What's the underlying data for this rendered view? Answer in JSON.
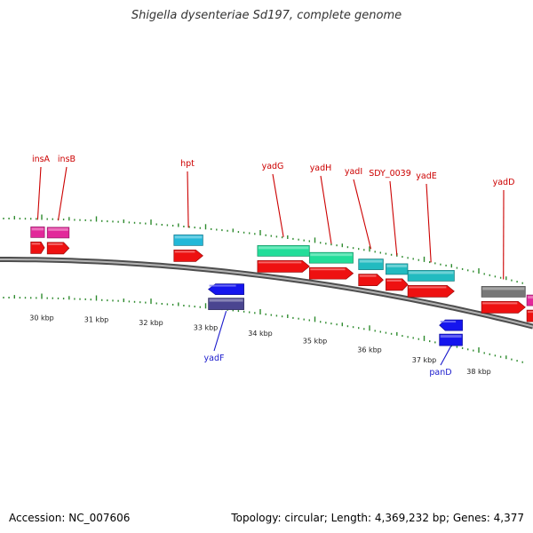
{
  "title": "Shigella dysenteriae Sd197, complete genome",
  "footer": {
    "accession": "Accession: NC_007606",
    "topology": "Topology: circular; Length: 4,369,232 bp; Genes: 4,377"
  },
  "colors": {
    "backbone": "#808080",
    "tick": "#2e8b2e",
    "label_top": "#cc0000",
    "label_bottom": "#1a1acc",
    "cds_red": "#ee1111",
    "magenta": "#e2289a",
    "cyan": "#22b8d8",
    "green_teal": "#22dd99",
    "teal": "#22bbc0",
    "gray": "#777777",
    "blue": "#1515ee",
    "slate": "#4a4590"
  },
  "chart_data": {
    "type": "genome-map",
    "view_range_kbp": [
      29.2,
      38.8
    ],
    "scale_labels": [
      {
        "kbp": 30,
        "label": "30 kbp"
      },
      {
        "kbp": 31,
        "label": "31 kbp"
      },
      {
        "kbp": 32,
        "label": "32 kbp"
      },
      {
        "kbp": 33,
        "label": "33 kbp"
      },
      {
        "kbp": 34,
        "label": "34 kbp"
      },
      {
        "kbp": 35,
        "label": "35 kbp"
      },
      {
        "kbp": 36,
        "label": "36 kbp"
      },
      {
        "kbp": 37,
        "label": "37 kbp"
      },
      {
        "kbp": 38,
        "label": "38 kbp"
      }
    ],
    "features": [
      {
        "name": "insA",
        "strand": "+",
        "start": 29.8,
        "end": 30.05,
        "color": "magenta",
        "label": "insA"
      },
      {
        "name": "insB",
        "strand": "+",
        "start": 30.1,
        "end": 30.5,
        "color": "magenta",
        "label": "insB"
      },
      {
        "name": "hpt",
        "strand": "+",
        "start": 32.42,
        "end": 32.95,
        "color": "cyan",
        "label": "hpt"
      },
      {
        "name": "yadF",
        "strand": "-",
        "start": 33.05,
        "end": 33.7,
        "color": "slate",
        "label": "yadF"
      },
      {
        "name": "yadG",
        "strand": "+",
        "start": 33.95,
        "end": 34.9,
        "color": "green_teal",
        "label": "yadG"
      },
      {
        "name": "yadH",
        "strand": "+",
        "start": 34.9,
        "end": 35.7,
        "color": "green_teal",
        "label": "yadH"
      },
      {
        "name": "yadI",
        "strand": "+",
        "start": 35.8,
        "end": 36.25,
        "color": "teal",
        "label": "yadI"
      },
      {
        "name": "SDY_0039",
        "strand": "+",
        "start": 36.3,
        "end": 36.7,
        "color": "teal",
        "label": "SDY_0039"
      },
      {
        "name": "yadE",
        "strand": "+",
        "start": 36.7,
        "end": 37.55,
        "color": "teal",
        "label": "yadE"
      },
      {
        "name": "panD",
        "strand": "-",
        "start": 37.28,
        "end": 37.7,
        "color": "blue",
        "label": "panD"
      },
      {
        "name": "yadD",
        "strand": "+",
        "start": 38.05,
        "end": 38.85,
        "color": "gray",
        "label": "yadD"
      },
      {
        "name": "right-edge-gene",
        "strand": "+",
        "start": 38.88,
        "end": 39.3,
        "color": "magenta",
        "label": ""
      }
    ]
  }
}
